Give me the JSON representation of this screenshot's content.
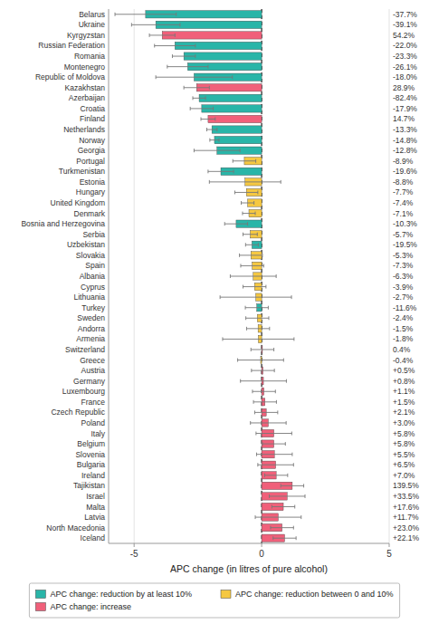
{
  "chart_data": {
    "type": "bar",
    "orientation": "horizontal",
    "xlabel": "APC change (in litres of pure alcohol)",
    "categories": [
      "Belarus",
      "Ukraine",
      "Kyrgyzstan",
      "Russian Federation",
      "Romania",
      "Montenegro",
      "Republic of Moldova",
      "Kazakhstan",
      "Azerbaijan",
      "Croatia",
      "Finland",
      "Netherlands",
      "Norway",
      "Georgia",
      "Portugal",
      "Turkmenistan",
      "Estonia",
      "Hungary",
      "United Kingdom",
      "Denmark",
      "Bosnia and Herzegovina",
      "Serbia",
      "Uzbekistan",
      "Slovakia",
      "Spain",
      "Albania",
      "Cyprus",
      "Lithuania",
      "Turkey",
      "Sweden",
      "Andorra",
      "Armenia",
      "Switzerland",
      "Greece",
      "Austria",
      "Germany",
      "Luxembourg",
      "France",
      "Czech Republic",
      "Poland",
      "Italy",
      "Belgium",
      "Slovenia",
      "Bulgaria",
      "Ireland",
      "Tajikistan",
      "Israel",
      "Malta",
      "Latvia",
      "North Macedonia",
      "Iceland"
    ],
    "values": [
      -4.55,
      -4.15,
      -3.9,
      -3.4,
      -3.05,
      -2.9,
      -2.65,
      -2.55,
      -2.45,
      -2.35,
      -2.1,
      -1.95,
      -1.85,
      -1.75,
      -0.68,
      -1.6,
      -0.65,
      -0.6,
      -0.55,
      -0.5,
      -1.0,
      -0.45,
      -0.38,
      -0.42,
      -0.37,
      -0.33,
      -0.28,
      -0.23,
      -0.19,
      -0.17,
      -0.14,
      -0.13,
      0.03,
      -0.04,
      0.05,
      0.07,
      0.09,
      0.13,
      0.18,
      0.26,
      0.48,
      0.48,
      0.5,
      0.55,
      0.57,
      1.2,
      1.0,
      0.85,
      0.65,
      0.8,
      0.9
    ],
    "annotations": [
      "-37.7%",
      "-39.1%",
      "54.2%",
      "-22.0%",
      "-23.3%",
      "-26.1%",
      "-18.0%",
      "28.9%",
      "-82.4%",
      "-17.9%",
      "14.7%",
      "-13.3%",
      "-14.8%",
      "-12.8%",
      "-8.9%",
      "-19.6%",
      "-8.8%",
      "-7.7%",
      "-7.4%",
      "-7.1%",
      "-10.3%",
      "-5.7%",
      "-19.5%",
      "-5.3%",
      "-7.3%",
      "-6.3%",
      "-3.9%",
      "-2.7%",
      "-11.6%",
      "-2.4%",
      "-1.5%",
      "-1.8%",
      "0.4%",
      "-0.4%",
      "+0.5%",
      "+0.8%",
      "+1.1%",
      "+1.5%",
      "+2.1%",
      "+3.0%",
      "+5.8%",
      "+5.8%",
      "+5.5%",
      "+6.5%",
      "+7.0%",
      "139.5%",
      "+33.5%",
      "+17.6%",
      "+11.7%",
      "+23.0%",
      "+22.1%"
    ],
    "err_low": [
      1.2,
      0.95,
      0.5,
      0.8,
      0.45,
      0.8,
      1.5,
      0.5,
      0.25,
      0.45,
      0.28,
      0.2,
      0.18,
      0.9,
      0.45,
      0.5,
      1.4,
      0.45,
      0.25,
      0.25,
      0.45,
      0.28,
      0.25,
      0.45,
      0.45,
      0.9,
      0.45,
      1.4,
      0.45,
      0.45,
      0.45,
      1.4,
      0.45,
      0.9,
      0.45,
      0.9,
      0.45,
      0.45,
      0.45,
      0.7,
      0.7,
      0.45,
      0.7,
      0.7,
      0.45,
      0.45,
      0.7,
      0.45,
      0.9,
      0.45,
      0.45
    ],
    "err_high": [
      1.2,
      0.95,
      0.5,
      0.8,
      0.45,
      0.8,
      1.5,
      0.5,
      0.25,
      0.45,
      0.28,
      0.2,
      0.18,
      0.9,
      0.45,
      0.5,
      1.4,
      0.45,
      0.25,
      0.25,
      0.45,
      0.28,
      0.25,
      0.45,
      0.45,
      0.9,
      0.45,
      1.4,
      0.45,
      0.45,
      0.45,
      1.4,
      0.45,
      0.9,
      0.45,
      0.9,
      0.45,
      0.45,
      0.45,
      0.7,
      0.7,
      0.45,
      0.7,
      0.7,
      0.45,
      0.45,
      0.7,
      0.45,
      0.9,
      0.45,
      0.45
    ],
    "colors": [
      "#29b5a8",
      "#29b5a8",
      "#f0607a",
      "#29b5a8",
      "#29b5a8",
      "#29b5a8",
      "#29b5a8",
      "#f0607a",
      "#29b5a8",
      "#29b5a8",
      "#f0607a",
      "#29b5a8",
      "#29b5a8",
      "#29b5a8",
      "#f5c842",
      "#29b5a8",
      "#f5c842",
      "#f5c842",
      "#f5c842",
      "#f5c842",
      "#29b5a8",
      "#f5c842",
      "#29b5a8",
      "#f5c842",
      "#f5c842",
      "#f5c842",
      "#f5c842",
      "#f5c842",
      "#29b5a8",
      "#f5c842",
      "#f5c842",
      "#f5c842",
      "#f0607a",
      "#f5c842",
      "#f0607a",
      "#f0607a",
      "#f0607a",
      "#f0607a",
      "#f0607a",
      "#f0607a",
      "#f0607a",
      "#f0607a",
      "#f0607a",
      "#f0607a",
      "#f0607a",
      "#f0607a",
      "#f0607a",
      "#f0607a",
      "#f0607a",
      "#f0607a",
      "#f0607a"
    ],
    "legend_items": [
      {
        "label": "APC change: reduction by at least 10%",
        "color": "#29b5a8"
      },
      {
        "label": "APC change: reduction between 0 and 10%",
        "color": "#f5c842"
      },
      {
        "label": "APC change: increase",
        "color": "#f0607a"
      }
    ],
    "legend": "bottom",
    "reference_line": 0,
    "xlim": [
      -6.0,
      5.0
    ],
    "xticks": [
      -5,
      0,
      5
    ],
    "grid": true
  }
}
